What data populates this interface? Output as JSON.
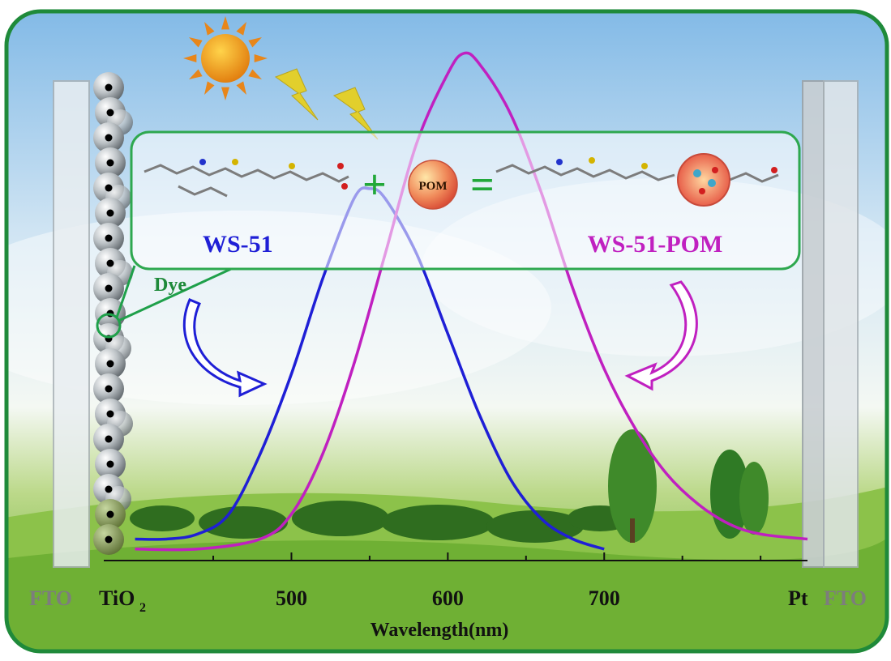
{
  "labels": {
    "fto_left": "FTO",
    "tio2_main": "TiO",
    "tio2_sub": "2",
    "pt": "Pt",
    "fto_right": "FTO",
    "dye": "Dye",
    "ws51": "WS-51",
    "ws51_pom": "WS-51-POM",
    "pom": "POM",
    "plus": "+",
    "equals": "="
  },
  "colors": {
    "ws51": "#1f1fd6",
    "ws51_pom": "#c020c0",
    "frame": "#1f8a3a",
    "box": "#2ea84f",
    "axis": "#111111"
  },
  "chart_data": {
    "type": "line",
    "xlabel": "Wavelength(nm)",
    "xlim": [
      380,
      830
    ],
    "ylim": [
      0,
      1.0
    ],
    "x_ticks": [
      500,
      600,
      700
    ],
    "series": [
      {
        "name": "WS-51",
        "x": [
          400,
          420,
          440,
          460,
          480,
          500,
          520,
          540,
          550,
          560,
          580,
          600,
          620,
          640,
          660,
          680,
          700
        ],
        "y": [
          0.03,
          0.03,
          0.04,
          0.08,
          0.2,
          0.36,
          0.55,
          0.71,
          0.73,
          0.71,
          0.6,
          0.44,
          0.28,
          0.15,
          0.07,
          0.03,
          0.01
        ]
      },
      {
        "name": "WS-51-POM",
        "x": [
          400,
          440,
          480,
          500,
          520,
          540,
          560,
          580,
          600,
          610,
          620,
          640,
          660,
          680,
          700,
          720,
          740,
          760,
          780,
          800,
          830
        ],
        "y": [
          0.01,
          0.01,
          0.03,
          0.08,
          0.2,
          0.38,
          0.6,
          0.82,
          0.96,
          1.0,
          0.98,
          0.88,
          0.72,
          0.53,
          0.37,
          0.25,
          0.16,
          0.1,
          0.06,
          0.04,
          0.03
        ]
      }
    ]
  }
}
